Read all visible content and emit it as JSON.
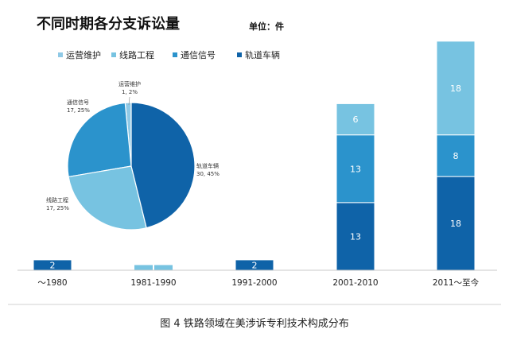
{
  "title": "不同时期各分支诉讼量",
  "unit_label": "单位：件",
  "caption": "图 4  铁路领域在美涉诉专利技术构成分布",
  "colors": {
    "运营维护": "#8fc9e6",
    "线路工程": "#77c3e1",
    "通信信号": "#2b93cc",
    "轨道车辆": "#0f63a8",
    "axis": "#c8c8c8",
    "caption_line": "#d0d0d0"
  },
  "chart_data": [
    {
      "type": "bar",
      "stacked": true,
      "categories": [
        "～1980",
        "1981-1990",
        "1991-2000",
        "2001-2010",
        "2011～至今"
      ],
      "series": [
        {
          "name": "运营维护",
          "values": [
            0,
            0,
            0,
            0,
            0
          ]
        },
        {
          "name": "线路工程",
          "values": [
            0,
            1,
            0,
            6,
            18
          ]
        },
        {
          "name": "通信信号",
          "values": [
            0,
            0,
            0,
            13,
            8
          ]
        },
        {
          "name": "轨道车辆",
          "values": [
            2,
            0,
            2,
            13,
            18
          ]
        }
      ],
      "data_labels": [
        [
          "2"
        ],
        [],
        [
          "2"
        ],
        [
          "13",
          "13",
          "6"
        ],
        [
          "18",
          "8",
          "18"
        ]
      ],
      "ylim": [
        0,
        45
      ],
      "xlabel": "",
      "ylabel": "",
      "legend": {
        "position": "top-left",
        "entries": [
          "运营维护",
          "线路工程",
          "通信信号",
          "轨道车辆"
        ]
      },
      "grid": false
    },
    {
      "type": "pie",
      "slices": [
        {
          "name": "运营维护",
          "value": 1,
          "pct": "2%",
          "label": [
            "运营维护",
            "1, 2%"
          ]
        },
        {
          "name": "通信信号",
          "value": 17,
          "pct": "25%",
          "label": [
            "通信信号",
            "17, 25%"
          ]
        },
        {
          "name": "线路工程",
          "value": 17,
          "pct": "25%",
          "label": [
            "线路工程",
            "17, 25%"
          ]
        },
        {
          "name": "轨道车辆",
          "value": 30,
          "pct": "45%",
          "label": [
            "轨道车辆",
            "30, 45%"
          ]
        }
      ]
    }
  ]
}
